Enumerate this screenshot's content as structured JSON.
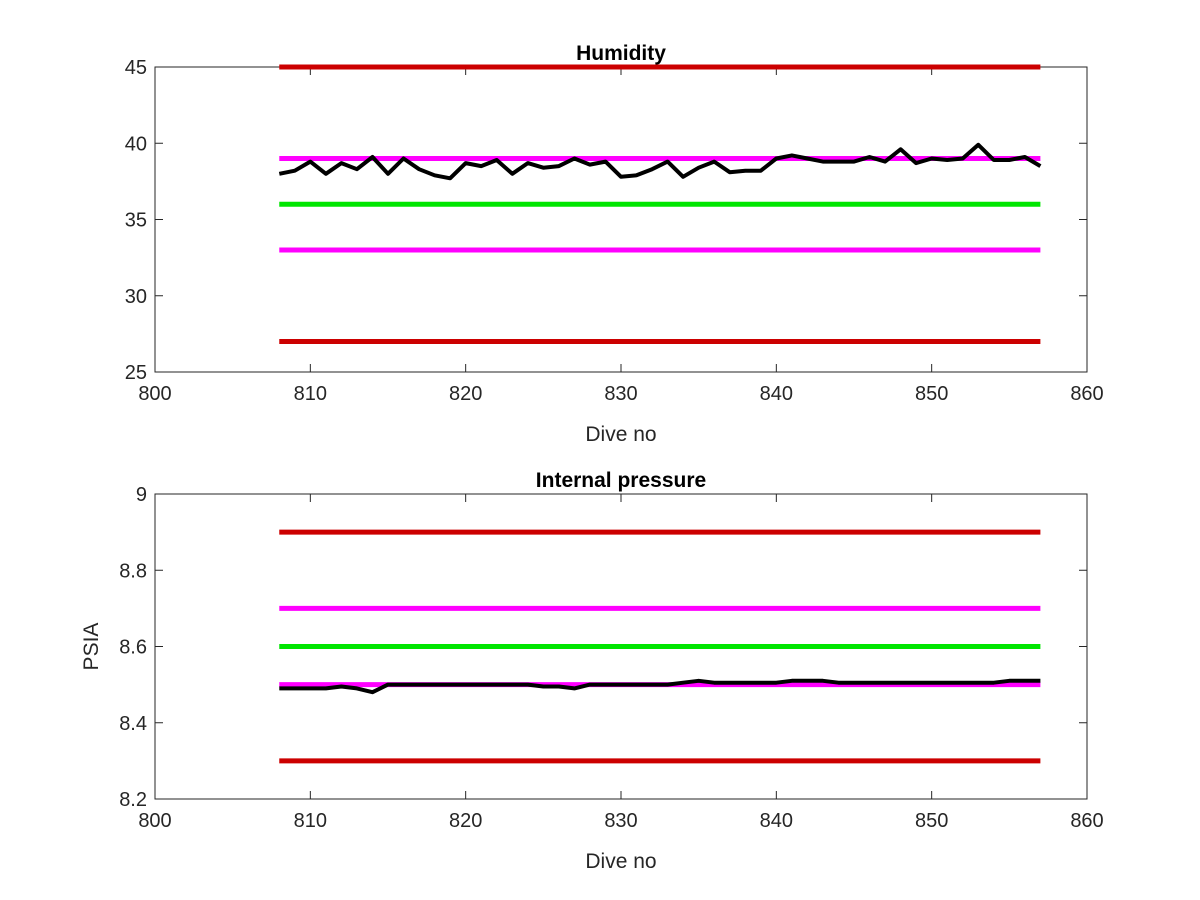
{
  "chart_data": [
    {
      "type": "line",
      "title": "Humidity",
      "xlabel": "Dive no",
      "ylabel": "",
      "xlim": [
        800,
        860
      ],
      "ylim": [
        25,
        45
      ],
      "xticks": [
        "800",
        "810",
        "820",
        "830",
        "840",
        "850",
        "860"
      ],
      "yticks": [
        "25",
        "30",
        "35",
        "40",
        "45"
      ],
      "reference_lines": [
        {
          "y": 45,
          "x_range": [
            808,
            857
          ],
          "color": "#cc0000"
        },
        {
          "y": 39,
          "x_range": [
            808,
            857
          ],
          "color": "#ff00ff"
        },
        {
          "y": 36,
          "x_range": [
            808,
            857
          ],
          "color": "#00e600"
        },
        {
          "y": 33,
          "x_range": [
            808,
            857
          ],
          "color": "#ff00ff"
        },
        {
          "y": 27,
          "x_range": [
            808,
            857
          ],
          "color": "#cc0000"
        }
      ],
      "series": [
        {
          "color": "#000000",
          "x": [
            808,
            809,
            810,
            811,
            812,
            813,
            814,
            815,
            816,
            817,
            818,
            819,
            820,
            821,
            822,
            823,
            824,
            825,
            826,
            827,
            828,
            829,
            830,
            831,
            832,
            833,
            834,
            835,
            836,
            837,
            838,
            839,
            840,
            841,
            842,
            843,
            844,
            845,
            846,
            847,
            848,
            849,
            850,
            851,
            852,
            853,
            854,
            855,
            856,
            857
          ],
          "y": [
            38.0,
            38.2,
            38.8,
            38.0,
            38.7,
            38.3,
            39.1,
            38.0,
            39.0,
            38.3,
            37.9,
            37.7,
            38.7,
            38.5,
            38.9,
            38.0,
            38.7,
            38.4,
            38.5,
            39.0,
            38.6,
            38.8,
            37.8,
            37.9,
            38.3,
            38.8,
            37.8,
            38.4,
            38.8,
            38.1,
            38.2,
            38.2,
            39.0,
            39.2,
            39.0,
            38.8,
            38.8,
            38.8,
            39.1,
            38.8,
            39.6,
            38.7,
            39.0,
            38.9,
            39.0,
            39.9,
            38.9,
            38.9,
            39.1,
            38.5
          ]
        }
      ]
    },
    {
      "type": "line",
      "title": "Internal pressure",
      "xlabel": "Dive no",
      "ylabel": "PSIA",
      "xlim": [
        800,
        860
      ],
      "ylim": [
        8.2,
        9.0
      ],
      "xticks": [
        "800",
        "810",
        "820",
        "830",
        "840",
        "850",
        "860"
      ],
      "yticks": [
        "8.2",
        "8.4",
        "8.6",
        "8.8",
        "9"
      ],
      "reference_lines": [
        {
          "y": 8.9,
          "x_range": [
            808,
            857
          ],
          "color": "#cc0000"
        },
        {
          "y": 8.7,
          "x_range": [
            808,
            857
          ],
          "color": "#ff00ff"
        },
        {
          "y": 8.6,
          "x_range": [
            808,
            857
          ],
          "color": "#00e600"
        },
        {
          "y": 8.5,
          "x_range": [
            808,
            857
          ],
          "color": "#ff00ff"
        },
        {
          "y": 8.3,
          "x_range": [
            808,
            857
          ],
          "color": "#cc0000"
        }
      ],
      "series": [
        {
          "color": "#000000",
          "x": [
            808,
            809,
            810,
            811,
            812,
            813,
            814,
            815,
            816,
            817,
            818,
            819,
            820,
            821,
            822,
            823,
            824,
            825,
            826,
            827,
            828,
            829,
            830,
            831,
            832,
            833,
            834,
            835,
            836,
            837,
            838,
            839,
            840,
            841,
            842,
            843,
            844,
            845,
            846,
            847,
            848,
            849,
            850,
            851,
            852,
            853,
            854,
            855,
            856,
            857
          ],
          "y": [
            8.49,
            8.49,
            8.49,
            8.49,
            8.495,
            8.49,
            8.48,
            8.5,
            8.5,
            8.5,
            8.5,
            8.5,
            8.5,
            8.5,
            8.5,
            8.5,
            8.5,
            8.495,
            8.495,
            8.49,
            8.5,
            8.5,
            8.5,
            8.5,
            8.5,
            8.5,
            8.505,
            8.51,
            8.505,
            8.505,
            8.505,
            8.505,
            8.505,
            8.51,
            8.51,
            8.51,
            8.505,
            8.505,
            8.505,
            8.505,
            8.505,
            8.505,
            8.505,
            8.505,
            8.505,
            8.505,
            8.505,
            8.51,
            8.51,
            8.51
          ]
        }
      ]
    }
  ]
}
